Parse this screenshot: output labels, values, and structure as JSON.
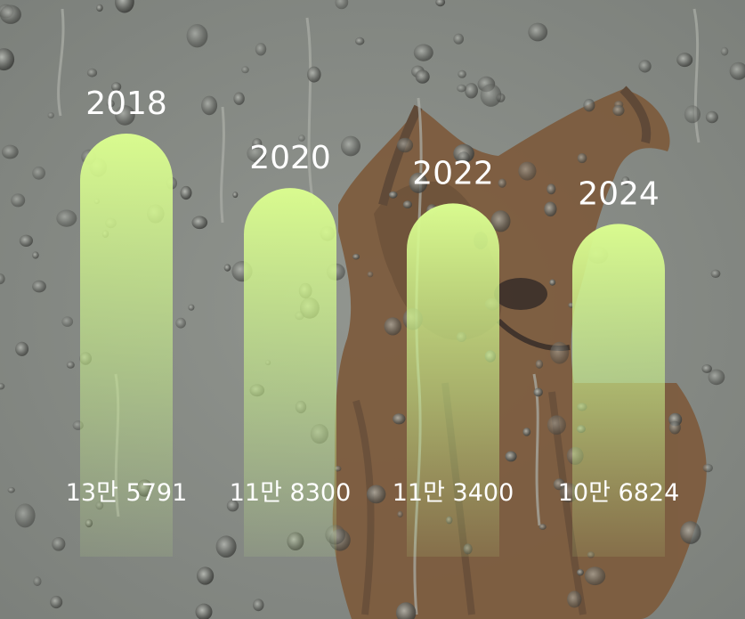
{
  "chart_data": {
    "type": "bar",
    "categories": [
      "2018",
      "2020",
      "2022",
      "2024"
    ],
    "values": [
      135791,
      118300,
      113400,
      106824
    ],
    "value_labels": [
      "13만 5791",
      "11만 8300",
      "11만 3400",
      "10만 6824"
    ],
    "title": "",
    "xlabel": "",
    "ylabel": "",
    "ylim": [
      0,
      150000
    ],
    "grid": false,
    "legend": "none"
  },
  "colors": {
    "bar_top": "#d9fb8f",
    "bar_bottom": "#c7ef8a",
    "background": "#8a8e88",
    "text": "#ffffff"
  },
  "background_art": "rainy-window-with-dog-illustration"
}
